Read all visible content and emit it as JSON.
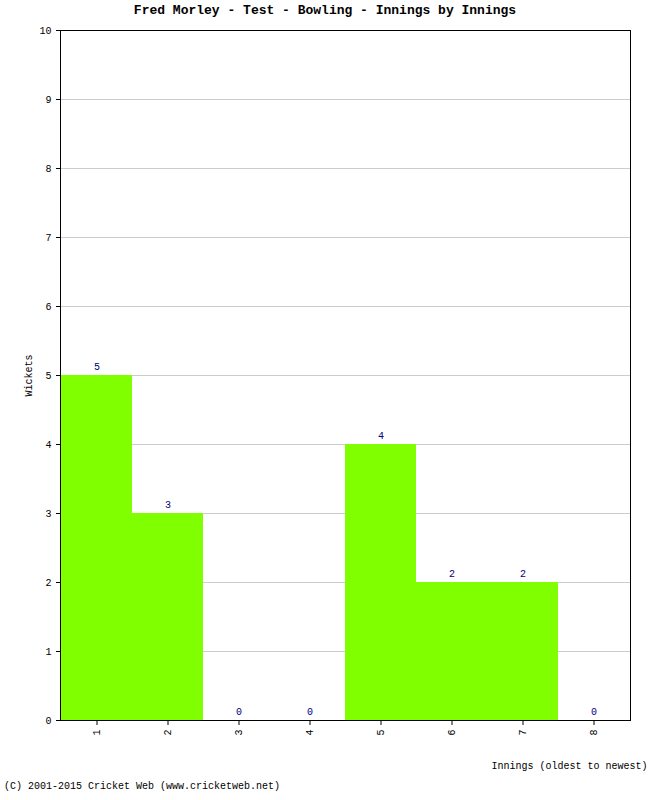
{
  "chart_data": {
    "type": "bar",
    "title": "Fred Morley - Test - Bowling - Innings by Innings",
    "x_label": "Innings (oldest to newest)",
    "y_label": "Wickets",
    "categories": [
      "1",
      "2",
      "3",
      "4",
      "5",
      "6",
      "7",
      "8"
    ],
    "values": [
      5,
      3,
      0,
      0,
      4,
      2,
      2,
      0
    ],
    "color": "#7fff00",
    "ylim": [
      0,
      10
    ],
    "yticks": [
      0,
      1,
      2,
      3,
      4,
      5,
      6,
      7,
      8,
      9,
      10
    ],
    "grid": true,
    "data_labels": true,
    "caption": "(C) 2001-2015 Cricket Web (www.cricketweb.net)"
  }
}
